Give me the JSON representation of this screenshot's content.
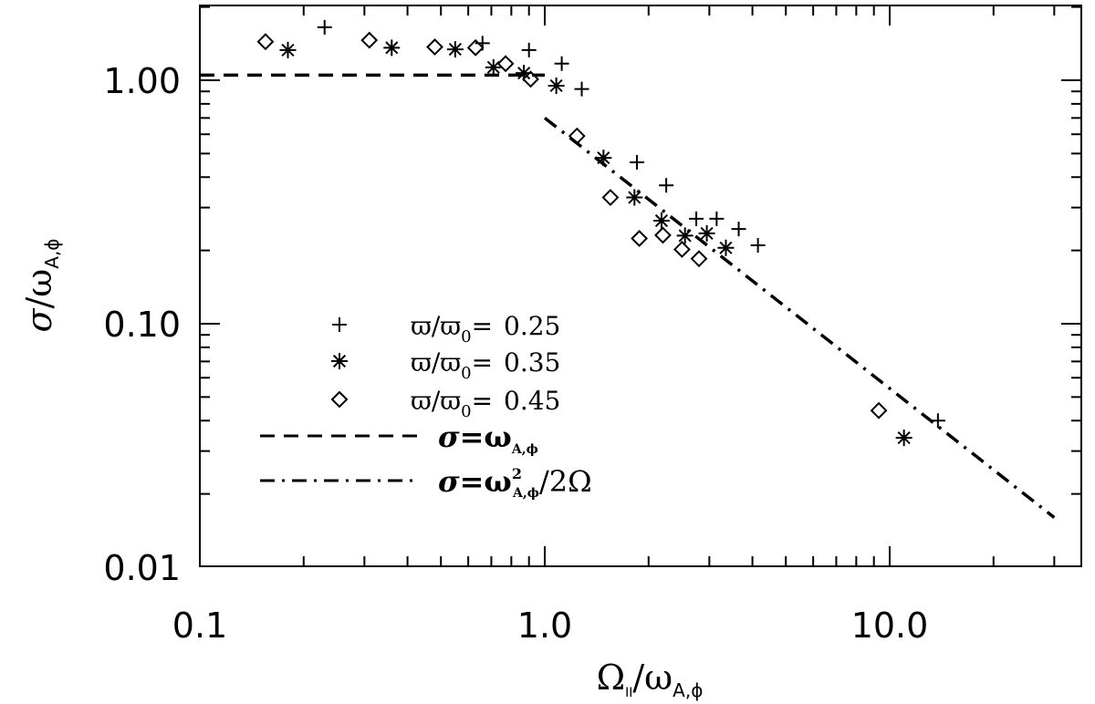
{
  "chart_data": {
    "type": "scatter",
    "xscale": "log",
    "yscale": "log",
    "xlim": [
      0.1,
      40
    ],
    "ylim": [
      0.01,
      2
    ],
    "xticks": [
      {
        "value": 0.1,
        "label": "0.1"
      },
      {
        "value": 1.0,
        "label": "1.0"
      },
      {
        "value": 10.0,
        "label": "10.0"
      }
    ],
    "yticks": [
      {
        "value": 0.01,
        "label": "0.01"
      },
      {
        "value": 0.1,
        "label": "0.10"
      },
      {
        "value": 1.0,
        "label": "1.00"
      }
    ],
    "xlabel": {
      "main": "Ω",
      "main_sub": "II",
      "slash": "/",
      "denom": "ω",
      "denom_sub": "A,ϕ"
    },
    "ylabel": {
      "main": "σ",
      "slash": "/",
      "denom": "ω",
      "denom_sub": "A,ϕ"
    },
    "series": [
      {
        "name": "ϖ/ϖ0 = 0.25",
        "label_parts": {
          "var": "ϖ/ϖ",
          "sub": "0",
          "eq": "=",
          "val": "0.25"
        },
        "marker": "plus",
        "points": [
          [
            0.23,
            1.65
          ],
          [
            0.66,
            1.42
          ],
          [
            0.9,
            1.33
          ],
          [
            1.12,
            1.17
          ],
          [
            1.28,
            0.92
          ],
          [
            1.85,
            0.46
          ],
          [
            2.25,
            0.37
          ],
          [
            2.75,
            0.27
          ],
          [
            3.15,
            0.27
          ],
          [
            3.65,
            0.245
          ],
          [
            4.15,
            0.21
          ],
          [
            13.8,
            0.04
          ]
        ]
      },
      {
        "name": "ϖ/ϖ0 = 0.35",
        "label_parts": {
          "var": "ϖ/ϖ",
          "sub": "0",
          "eq": "=",
          "val": "0.35"
        },
        "marker": "asterisk",
        "points": [
          [
            0.18,
            1.33
          ],
          [
            0.36,
            1.36
          ],
          [
            0.55,
            1.34
          ],
          [
            0.71,
            1.13
          ],
          [
            0.87,
            1.07
          ],
          [
            1.08,
            0.95
          ],
          [
            1.48,
            0.48
          ],
          [
            1.82,
            0.33
          ],
          [
            2.18,
            0.265
          ],
          [
            2.55,
            0.23
          ],
          [
            2.95,
            0.235
          ],
          [
            3.35,
            0.205
          ],
          [
            11.0,
            0.034
          ]
        ]
      },
      {
        "name": "ϖ/ϖ0 = 0.45",
        "label_parts": {
          "var": "ϖ/ϖ",
          "sub": "0",
          "eq": "=",
          "val": "0.45"
        },
        "marker": "diamond",
        "points": [
          [
            0.155,
            1.44
          ],
          [
            0.31,
            1.46
          ],
          [
            0.48,
            1.37
          ],
          [
            0.63,
            1.36
          ],
          [
            0.77,
            1.17
          ],
          [
            0.91,
            1.01
          ],
          [
            1.24,
            0.59
          ],
          [
            1.55,
            0.33
          ],
          [
            1.88,
            0.224
          ],
          [
            2.2,
            0.231
          ],
          [
            2.5,
            0.202
          ],
          [
            2.8,
            0.185
          ],
          [
            9.3,
            0.044
          ]
        ]
      }
    ],
    "lines": [
      {
        "name": "σ = ω_A,ϕ",
        "style": "dashed",
        "points": [
          [
            0.1,
            1.05
          ],
          [
            1.0,
            1.05
          ]
        ]
      },
      {
        "name": "σ = ω_A,ϕ^2 / 2Ω",
        "style": "dash-dot",
        "points": [
          [
            1.0,
            0.7
          ],
          [
            30,
            0.016
          ]
        ]
      }
    ],
    "legend": {
      "placement": "lower-left",
      "line_labels": [
        {
          "lhs": "σ",
          "eq": "=",
          "omega": "ω",
          "sub": "A,ϕ",
          "sup": "",
          "tail": ""
        },
        {
          "lhs": "σ",
          "eq": "=",
          "omega": "ω",
          "sub": "A,ϕ",
          "sup": "2",
          "tail": "/2Ω"
        }
      ]
    },
    "grid": false
  }
}
